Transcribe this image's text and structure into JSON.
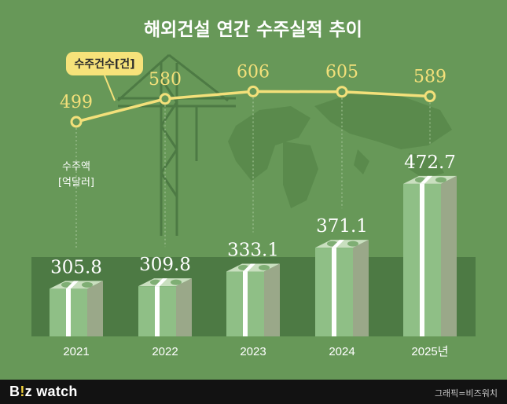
{
  "title": "해외건설 연간 수주실적 추이",
  "legend_count": "수주건수[건]",
  "amount_unit_line1": "수주액",
  "amount_unit_line2": "[억달러]",
  "brand": {
    "prefix": "B",
    "dot": "!",
    "suffix": "z watch"
  },
  "credit": "그래픽=비즈워치",
  "colors": {
    "background": "#679858",
    "band": "#4d7a44",
    "line": "#f3e07a",
    "money": "#8fbf86",
    "footer": "#121212"
  },
  "chart_data": {
    "type": "bar",
    "categories": [
      "2021",
      "2022",
      "2023",
      "2024",
      "2025년"
    ],
    "title": "해외건설 연간 수주실적 추이",
    "series": [
      {
        "name": "수주액[억달러]",
        "type": "bar",
        "values": [
          305.8,
          309.8,
          333.1,
          371.1,
          472.7
        ]
      },
      {
        "name": "수주건수[건]",
        "type": "line",
        "values": [
          499,
          580,
          606,
          605,
          589
        ]
      }
    ]
  }
}
